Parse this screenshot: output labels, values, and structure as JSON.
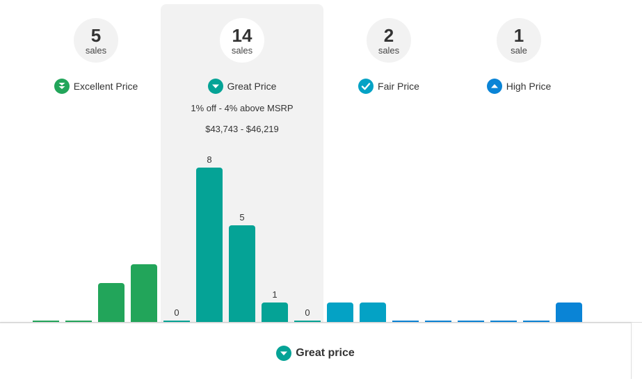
{
  "categories": [
    {
      "count": "5",
      "unit": "sales",
      "label": "Excellent Price",
      "icon": "double-chevron-down-icon",
      "color": "#22a55a"
    },
    {
      "count": "14",
      "unit": "sales",
      "label": "Great Price",
      "icon": "chevron-down-icon",
      "color": "#05a396",
      "range_pct": "1% off - 4% above MSRP",
      "range_price": "$43,743 - $46,219"
    },
    {
      "count": "2",
      "unit": "sales",
      "label": "Fair Price",
      "icon": "check-icon",
      "color": "#04a2c5"
    },
    {
      "count": "1",
      "unit": "sale",
      "label": "High Price",
      "icon": "chevron-up-icon",
      "color": "#0a84d6"
    }
  ],
  "chart_data": {
    "type": "bar",
    "values": [
      0,
      0,
      2,
      3,
      0,
      8,
      5,
      1,
      0,
      1,
      1,
      0,
      0,
      0,
      0,
      0,
      1
    ],
    "labels": [
      "",
      "",
      "",
      "",
      "0",
      "8",
      "5",
      "1",
      "0",
      "",
      "",
      "",
      "",
      "",
      "",
      "",
      ""
    ],
    "colors": [
      "#22a55a",
      "#22a55a",
      "#22a55a",
      "#22a55a",
      "#05a396",
      "#05a396",
      "#05a396",
      "#05a396",
      "#05a396",
      "#04a2c5",
      "#04a2c5",
      "#0a84d6",
      "#0a84d6",
      "#0a84d6",
      "#0a84d6",
      "#0a84d6",
      "#0a84d6"
    ]
  },
  "footer": {
    "label": "Great price",
    "icon": "chevron-down-icon",
    "color": "#05a396"
  }
}
